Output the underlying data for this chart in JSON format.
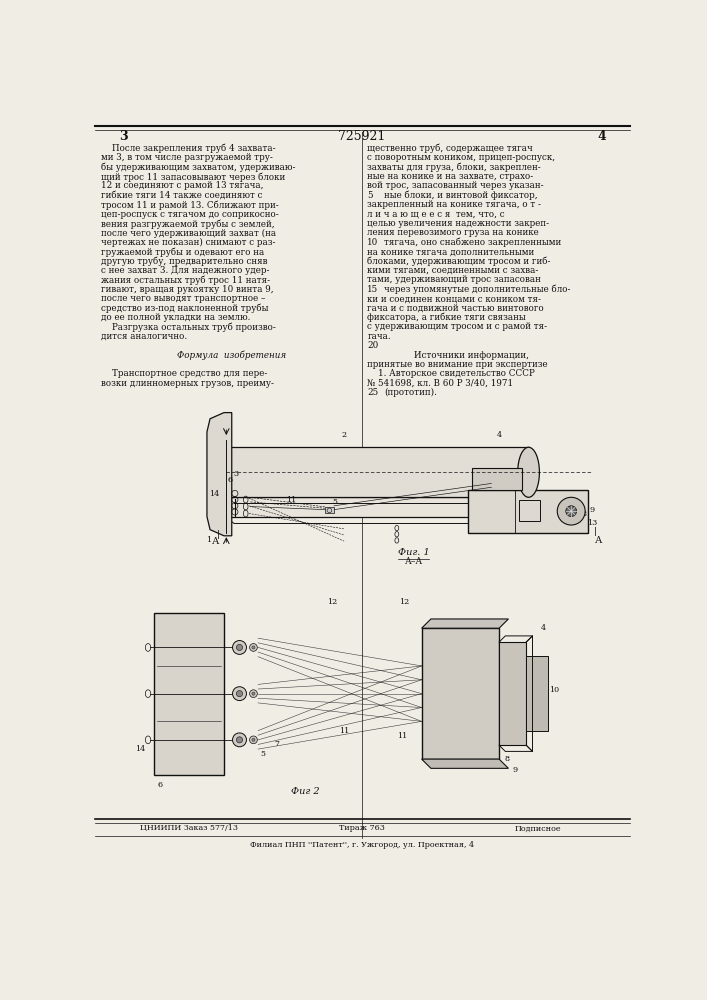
{
  "patent_number": "725921",
  "page_left": "3",
  "page_right": "4",
  "bg": "#f0ede5",
  "tc": "#111111",
  "bs": 6.3,
  "ss": 5.8,
  "left_col": [
    "    После закрепления труб 4 захвата-",
    "ми 3, в том числе разгружаемой тру-",
    "бы удерживающим захватом, удерживаю-",
    "щий трос 11 запасовывают через блоки",
    "12 и соединяют с рамой 13 тягача,",
    "гибкие тяги 14 также соединяют с",
    "тросом 11 и рамой 13. Сближают при-",
    "цеп-роспуск с тягачом до соприкосно-",
    "вения разгружаемой трубы с землей,",
    "после чего удерживающий захват (на",
    "чертежах не показан) снимают с раз-",
    "гружаемой трубы и одевают его на",
    "другую трубу, предварительно сняв",
    "с нее захват 3. Для надежного удер-",
    "жания остальных труб трос 11 натя-",
    "гивают, вращая рукоятку 10 винта 9,",
    "после чего выводят транспортное –",
    "средство из-под наклоненной трубы",
    "до ее полной укладки на землю.",
    "    Разгрузка остальных труб произво-",
    "дится аналогично.",
    "",
    "    Формула  изобретения",
    "",
    "    Транспортное средство для пере-",
    "возки длинномерных грузов, преиму-"
  ],
  "right_col": [
    "щественно труб, содержащее тягач",
    "с поворотным коником, прицеп-роспуск,",
    "захваты для груза, блоки, закреплен-",
    "ные на конике и на захвате, страхо-",
    "вой трос, запасованный через указан-",
    "5   ные блоки, и винтовой фиксатор,",
    "закрепленный на конике тягача, о т -",
    "л и ч а ю щ е е с я  тем, что, с",
    "целью увеличения надежности закреп-",
    "ления перевозимого груза на конике",
    "10  тягача, оно снабжено закрепленными",
    "на конике тягача дополнительными",
    "блоками, удерживающим тросом и гиб-",
    "кими тягами, соединенными с захва-",
    "тами, удерживающий трос запасован",
    "15  через упомянутые дополнительные бло-",
    "ки и соединен концами с коником тя-",
    "гача и с подвижной частью винтового",
    "фиксатора, а гибкие тяги связаны",
    "с удерживающим тросом и с рамой тя-",
    "гача.",
    "20",
    "        Источники информации,",
    "принятые во внимание при экспертизе",
    "    1. Авторское свидетельство СССР",
    "№ 541698, кл. В 60 Р 3/40, 1971",
    "25  (прототип)."
  ],
  "bot1": "ЦНИИПИ Заказ 577/13",
  "bot2": "Тираж 763",
  "bot3": "Подписное",
  "bot4": "Филиал ПНП ''Патент'', г. Ужгород, ул. Проектная, 4"
}
